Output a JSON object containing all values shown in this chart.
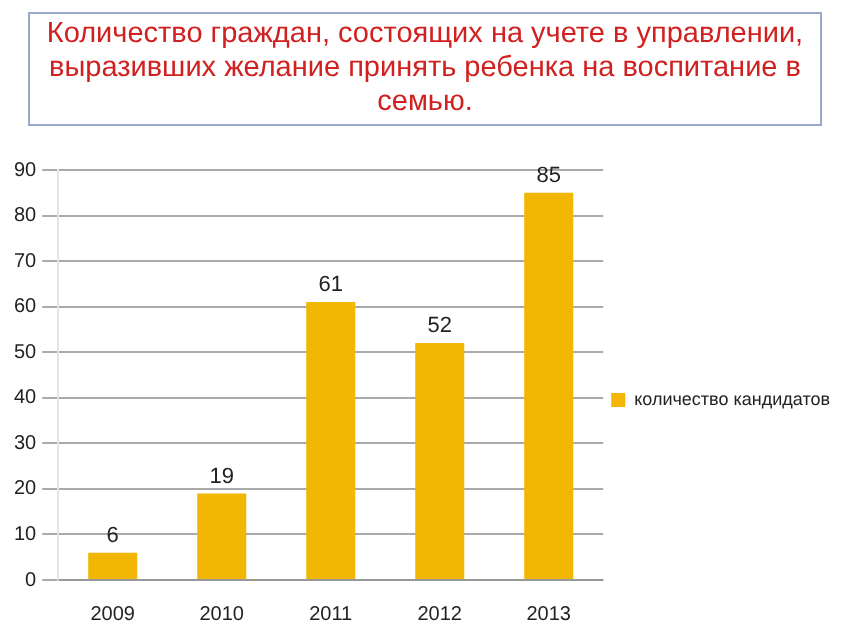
{
  "chart_data": {
    "type": "bar",
    "title": "Количество граждан, состоящих на учете в управлении, выразивших желание принять ребенка на воспитание в семью.",
    "categories": [
      "2009",
      "2010",
      "2011",
      "2012",
      "2013"
    ],
    "series": [
      {
        "name": "количество кандидатов",
        "color": "#f2b705",
        "values": [
          6,
          19,
          61,
          52,
          85
        ]
      }
    ],
    "ylim": [
      0,
      90
    ],
    "yticks": [
      0,
      10,
      20,
      30,
      40,
      50,
      60,
      70,
      80,
      90
    ],
    "grid": "y",
    "legend": "right",
    "data_labels": true
  }
}
